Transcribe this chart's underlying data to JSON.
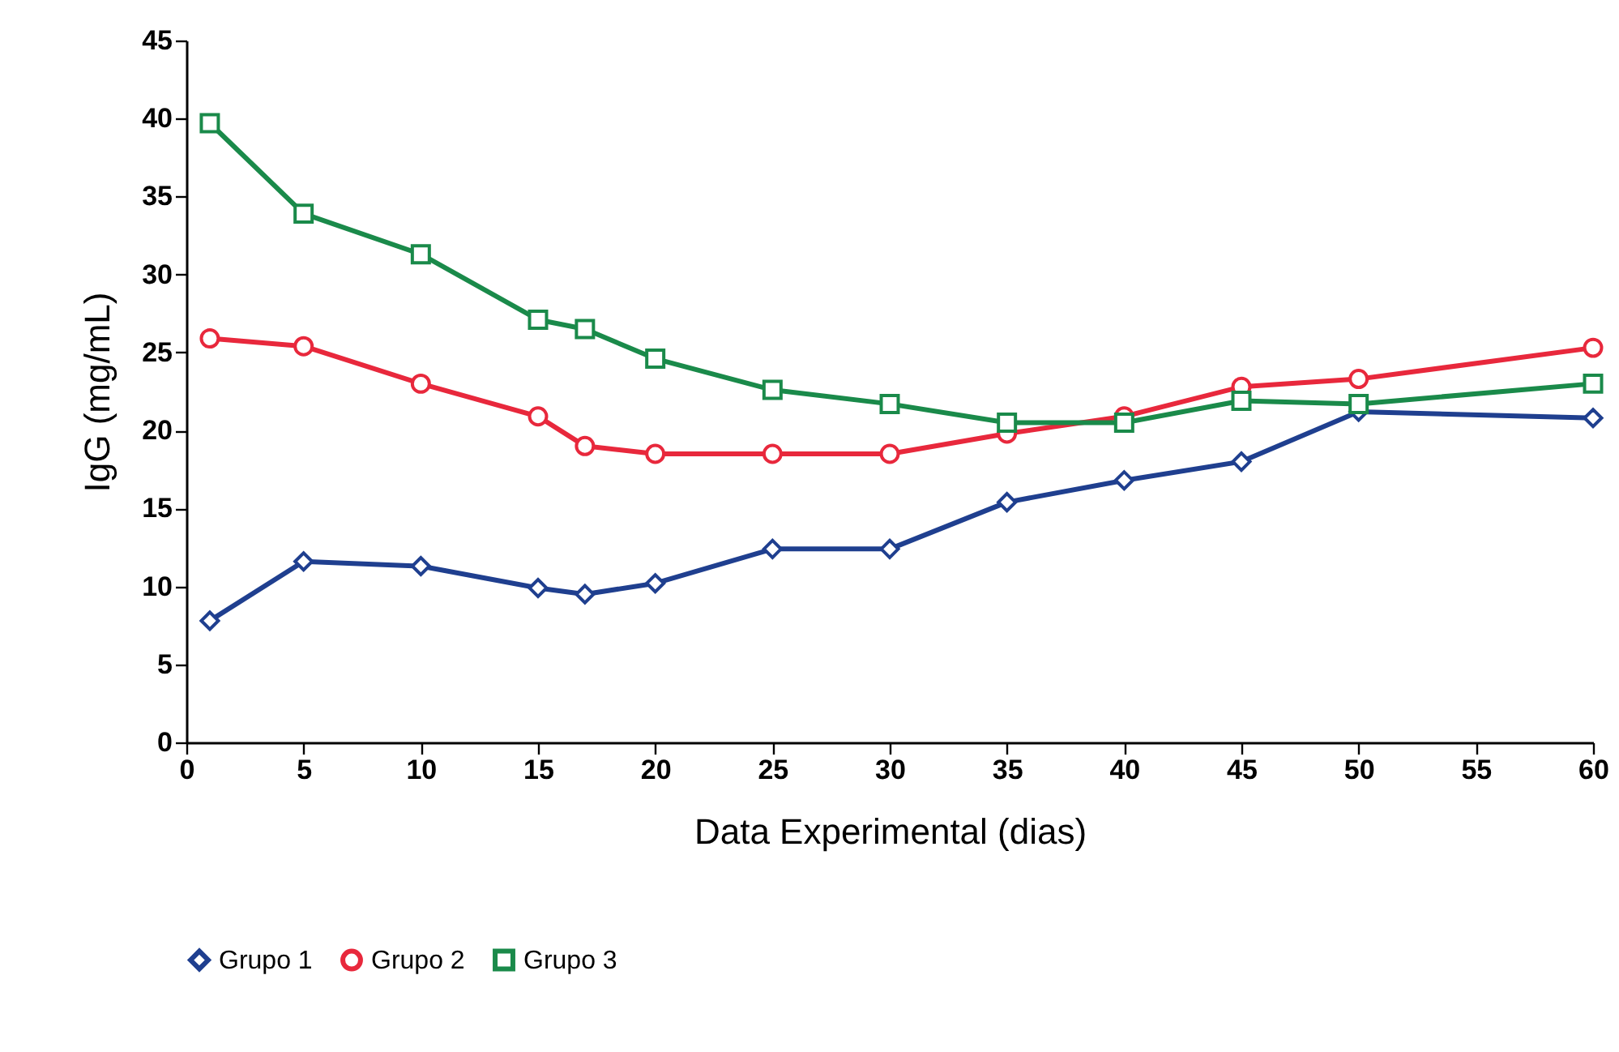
{
  "chart_data": {
    "type": "line",
    "xlabel": "Data Experimental (dias)",
    "ylabel": "IgG (mg/mL)",
    "x": [
      1,
      5,
      10,
      15,
      17,
      20,
      25,
      30,
      35,
      40,
      45,
      50,
      60
    ],
    "series": [
      {
        "name": "Grupo 1",
        "color": "#1f3f8f",
        "marker": "diamond",
        "values": [
          7.8,
          11.6,
          11.3,
          9.9,
          9.5,
          10.2,
          12.4,
          12.4,
          15.4,
          16.8,
          18.0,
          21.2,
          20.8
        ]
      },
      {
        "name": "Grupo 2",
        "color": "#e8283c",
        "marker": "circle",
        "values": [
          25.9,
          25.4,
          23.0,
          20.9,
          19.0,
          18.5,
          18.5,
          18.5,
          19.8,
          20.9,
          22.8,
          23.3,
          25.3
        ]
      },
      {
        "name": "Grupo 3",
        "color": "#1a8a4a",
        "marker": "square",
        "values": [
          39.7,
          33.9,
          31.3,
          27.1,
          26.5,
          24.6,
          22.6,
          21.7,
          20.5,
          20.5,
          21.9,
          21.7,
          23.0
        ]
      }
    ],
    "xlim": [
      0,
      60
    ],
    "xticks": [
      0,
      5,
      10,
      15,
      20,
      25,
      30,
      35,
      40,
      45,
      50,
      55,
      60
    ],
    "ylim": [
      0,
      45
    ],
    "yticks": [
      0,
      5,
      10,
      15,
      20,
      25,
      30,
      35,
      40,
      45
    ],
    "grid": false,
    "legend": "bottom",
    "line_style": "solid"
  }
}
